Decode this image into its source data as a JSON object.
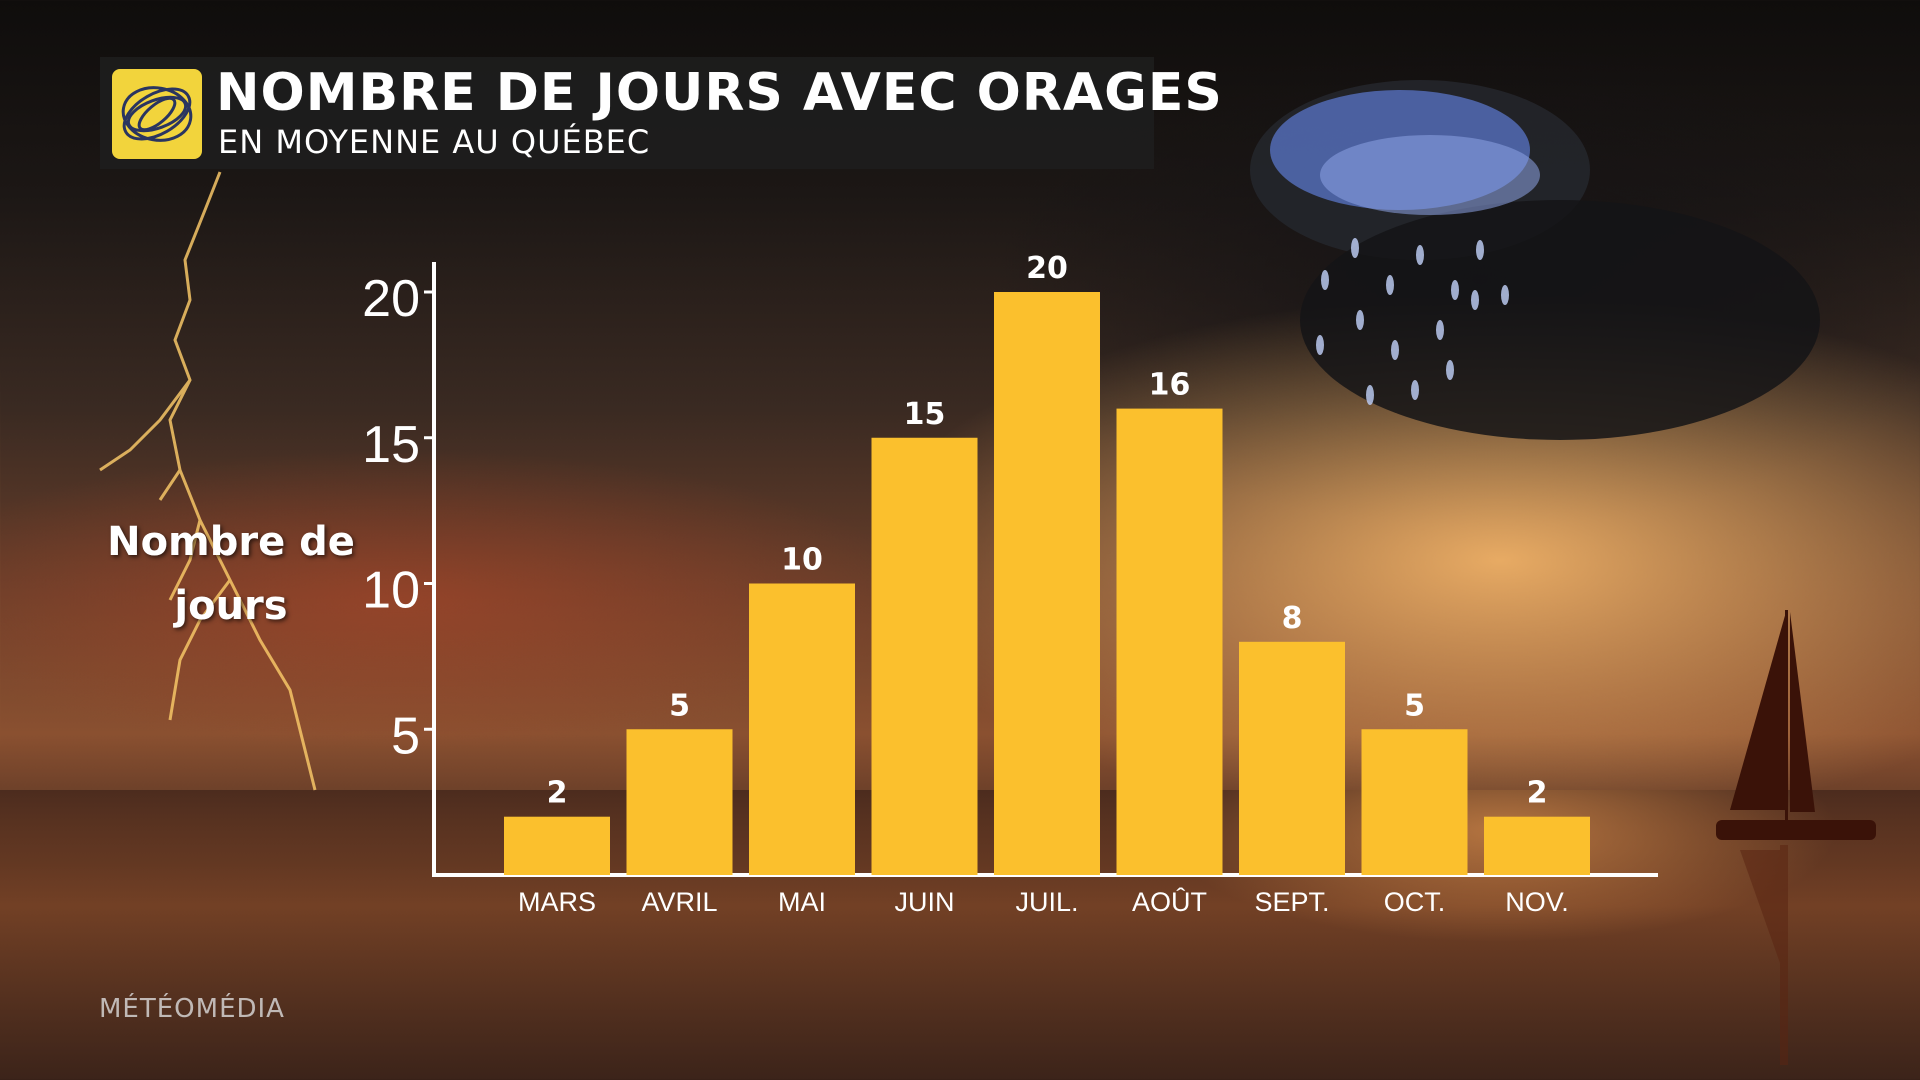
{
  "header": {
    "title": "NOMBRE DE JOURS AVEC ORAGES",
    "subtitle": "EN MOYENNE AU QUÉBEC",
    "logo_icon": "swirl-logo-icon"
  },
  "watermark": "MÉTÉOMÉDIA",
  "colors": {
    "bar": "#fbc02d",
    "axis": "#ffffff",
    "text": "#ffffff",
    "logo_bg": "#f2d43c",
    "title_bg": "#1e1e1e"
  },
  "chart_data": {
    "type": "bar",
    "title": "NOMBRE DE JOURS AVEC ORAGES",
    "subtitle": "EN MOYENNE AU QUÉBEC",
    "ylabel": "Nombre de jours",
    "xlabel": "",
    "categories": [
      "MARS",
      "AVRIL",
      "MAI",
      "JUIN",
      "JUIL.",
      "AOÛT",
      "SEPT.",
      "OCT.",
      "NOV."
    ],
    "values": [
      2,
      5,
      10,
      15,
      20,
      16,
      8,
      5,
      2
    ],
    "yticks": [
      5,
      10,
      15,
      20
    ],
    "ylim": [
      0,
      20
    ],
    "grid": false,
    "legend": "none",
    "data_labels": true
  }
}
